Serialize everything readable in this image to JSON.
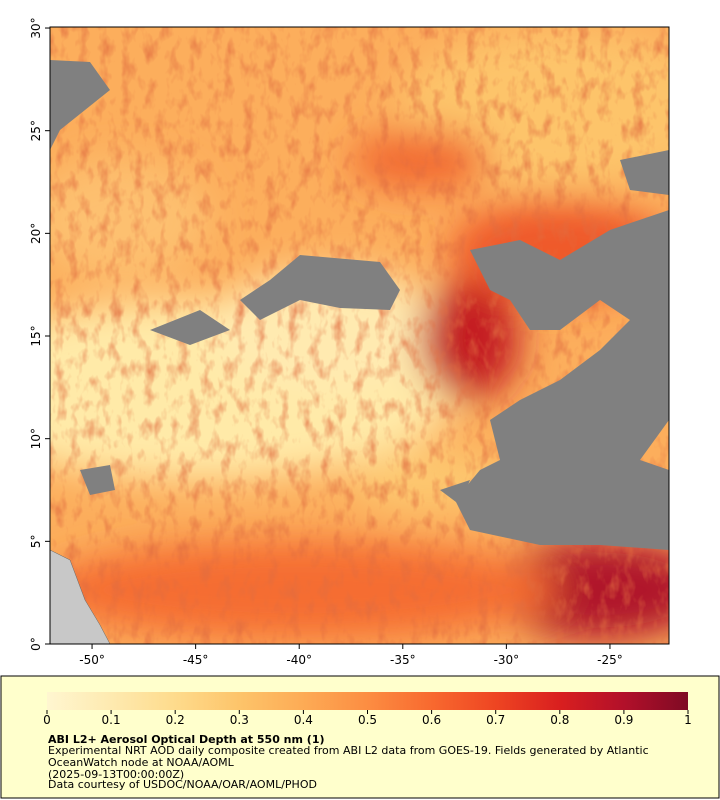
{
  "map": {
    "xlim": [
      -52.03,
      -22.15
    ],
    "ylim": [
      0,
      30.05
    ],
    "xticks": [
      {
        "value": -50,
        "label": "-50°"
      },
      {
        "value": -45,
        "label": "-45°"
      },
      {
        "value": -40,
        "label": "-40°"
      },
      {
        "value": -35,
        "label": "-35°"
      },
      {
        "value": -30,
        "label": "-30°"
      },
      {
        "value": -25,
        "label": "-25°"
      }
    ],
    "yticks": [
      {
        "value": 0,
        "label": "0°"
      },
      {
        "value": 5,
        "label": "5°"
      },
      {
        "value": 10,
        "label": "10°"
      },
      {
        "value": 15,
        "label": "15°"
      },
      {
        "value": 20,
        "label": "20°"
      },
      {
        "value": 25,
        "label": "25°"
      },
      {
        "value": 30,
        "label": "30°"
      }
    ]
  },
  "colorbar": {
    "lim": [
      0,
      1
    ],
    "ticks": [
      0,
      0.1,
      0.2,
      0.3,
      0.4,
      0.5,
      0.6,
      0.7,
      0.8,
      0.9,
      1
    ],
    "colors": [
      "#fff6d0",
      "#feeab0",
      "#fedb8c",
      "#fdc46a",
      "#fdab55",
      "#fc8d42",
      "#f8692f",
      "#ee4522",
      "#d91f1f",
      "#b2102a",
      "#7f0a24"
    ]
  },
  "caption": {
    "title": "ABI L2+ Aerosol Optical Depth at 550 nm (1)",
    "lines": [
      "Experimental NRT AOD daily composite created from ABI L2 data from GOES-19. Fields generated by Atlantic OceanWatch node at NOAA/AOML",
      "(2025-09-13T00:00:00Z)",
      "Data courtesy of USDOC/NOAA/OAR/AOML/PHOD"
    ]
  }
}
